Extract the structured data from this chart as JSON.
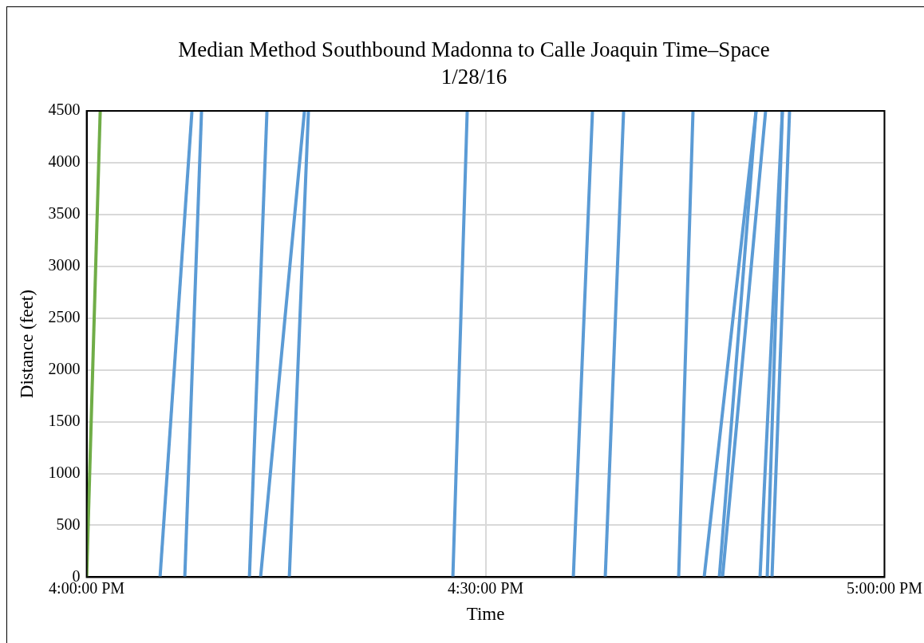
{
  "chart_data": {
    "type": "line",
    "title": "Median Method Southbound Madonna to Calle Joaquin Time–Space",
    "subtitle": "1/28/16",
    "xlabel": "Time",
    "ylabel": "Distance (feet)",
    "xlim": [
      16,
      17
    ],
    "xticks": [
      {
        "value": 16,
        "label": "4:00:00 PM"
      },
      {
        "value": 16.5,
        "label": "4:30:00 PM"
      },
      {
        "value": 17,
        "label": "5:00:00 PM"
      }
    ],
    "ylim": [
      0,
      4500
    ],
    "yticks": [
      0,
      500,
      1000,
      1500,
      2000,
      2500,
      3000,
      3500,
      4000,
      4500
    ],
    "grid": true,
    "marker": "none",
    "line_style": "solid",
    "series": [
      {
        "color": "#70ad47",
        "x": [
          16.0,
          16.017
        ],
        "values": [
          0,
          4500
        ]
      },
      {
        "color": "#5b9bd5",
        "x": [
          16.092,
          16.132
        ],
        "values": [
          0,
          4500
        ]
      },
      {
        "color": "#5b9bd5",
        "x": [
          16.123,
          16.144
        ],
        "values": [
          0,
          4500
        ]
      },
      {
        "color": "#5b9bd5",
        "x": [
          16.204,
          16.226
        ],
        "values": [
          0,
          4500
        ]
      },
      {
        "color": "#5b9bd5",
        "x": [
          16.218,
          16.273
        ],
        "values": [
          0,
          4500
        ]
      },
      {
        "color": "#5b9bd5",
        "x": [
          16.254,
          16.278
        ],
        "values": [
          0,
          4500
        ]
      },
      {
        "color": "#5b9bd5",
        "x": [
          16.459,
          16.477
        ],
        "values": [
          0,
          4500
        ]
      },
      {
        "color": "#5b9bd5",
        "x": [
          16.61,
          16.634
        ],
        "values": [
          0,
          4500
        ]
      },
      {
        "color": "#5b9bd5",
        "x": [
          16.65,
          16.673
        ],
        "values": [
          0,
          4500
        ]
      },
      {
        "color": "#5b9bd5",
        "x": [
          16.742,
          16.76
        ],
        "values": [
          0,
          4500
        ]
      },
      {
        "color": "#5b9bd5",
        "x": [
          16.774,
          16.839
        ],
        "values": [
          0,
          4500
        ]
      },
      {
        "color": "#5b9bd5",
        "x": [
          16.793,
          16.839
        ],
        "values": [
          0,
          4500
        ]
      },
      {
        "color": "#5b9bd5",
        "x": [
          16.797,
          16.851
        ],
        "values": [
          0,
          4500
        ]
      },
      {
        "color": "#5b9bd5",
        "x": [
          16.844,
          16.872
        ],
        "values": [
          0,
          4500
        ]
      },
      {
        "color": "#5b9bd5",
        "x": [
          16.853,
          16.872
        ],
        "values": [
          0,
          4500
        ]
      },
      {
        "color": "#5b9bd5",
        "x": [
          16.859,
          16.881
        ],
        "values": [
          0,
          4500
        ]
      }
    ]
  }
}
